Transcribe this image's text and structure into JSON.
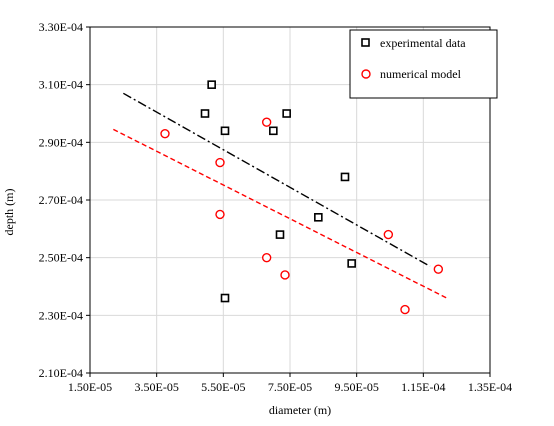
{
  "chart_data": {
    "type": "scatter",
    "title": "",
    "xlabel": "diameter (m)",
    "ylabel": "depth (m)",
    "xlim": [
      1.5e-05,
      0.000135
    ],
    "ylim": [
      0.00021,
      0.00033
    ],
    "x_ticks": [
      1.5e-05,
      3.5e-05,
      5.5e-05,
      7.5e-05,
      9.5e-05,
      0.000115,
      0.000135
    ],
    "x_tick_labels": [
      "1.50E-05",
      "3.50E-05",
      "5.50E-05",
      "7.50E-05",
      "9.50E-05",
      "1.15E-04",
      "1.35E-04"
    ],
    "y_ticks": [
      0.00021,
      0.00023,
      0.00025,
      0.00027,
      0.00029,
      0.00031,
      0.00033
    ],
    "y_tick_labels": [
      "2.10E-04",
      "2.30E-04",
      "2.50E-04",
      "2.70E-04",
      "2.90E-04",
      "3.10E-04",
      "3.30E-04"
    ],
    "grid": true,
    "legend_position": "top-right",
    "series": [
      {
        "name": "experimental data",
        "marker": "square",
        "color": "#000000",
        "points": [
          {
            "x": 4.95e-05,
            "y": 0.0003
          },
          {
            "x": 5.15e-05,
            "y": 0.00031
          },
          {
            "x": 5.55e-05,
            "y": 0.000294
          },
          {
            "x": 5.55e-05,
            "y": 0.000236
          },
          {
            "x": 7e-05,
            "y": 0.000294
          },
          {
            "x": 7.4e-05,
            "y": 0.0003
          },
          {
            "x": 7.2e-05,
            "y": 0.000258
          },
          {
            "x": 8.35e-05,
            "y": 0.000264
          },
          {
            "x": 9.15e-05,
            "y": 0.000278
          },
          {
            "x": 9.35e-05,
            "y": 0.000248
          }
        ]
      },
      {
        "name": "numerical model",
        "marker": "circle",
        "color": "#ff0000",
        "points": [
          {
            "x": 3.75e-05,
            "y": 0.000293
          },
          {
            "x": 5.4e-05,
            "y": 0.000283
          },
          {
            "x": 5.4e-05,
            "y": 0.000265
          },
          {
            "x": 6.8e-05,
            "y": 0.000297
          },
          {
            "x": 6.8e-05,
            "y": 0.00025
          },
          {
            "x": 7.35e-05,
            "y": 0.000244
          },
          {
            "x": 0.0001045,
            "y": 0.000258
          },
          {
            "x": 0.0001095,
            "y": 0.000232
          },
          {
            "x": 0.0001195,
            "y": 0.000246
          }
        ]
      }
    ],
    "trendlines": [
      {
        "series": "experimental data",
        "style": "dash-dot",
        "color": "#000000",
        "x": [
          2.5e-05,
          0.000117
        ],
        "y": [
          0.000307,
          0.000247
        ]
      },
      {
        "series": "numerical model",
        "style": "dashed",
        "color": "#ff0000",
        "x": [
          2.2e-05,
          0.000122
        ],
        "y": [
          0.0002945,
          0.000236
        ]
      }
    ]
  }
}
